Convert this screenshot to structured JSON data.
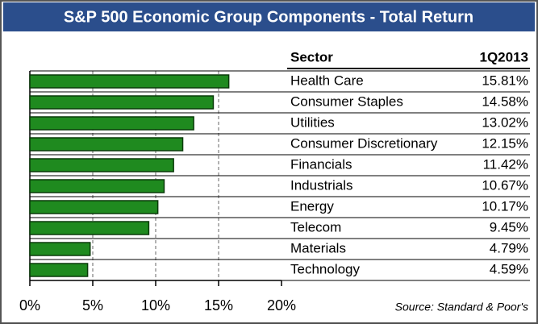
{
  "chart_data": {
    "type": "bar",
    "orientation": "horizontal",
    "title": "S&P 500 Economic Group Components - Total Return",
    "column_headers": [
      "Sector",
      "1Q2013"
    ],
    "categories": [
      "Health Care",
      "Consumer Staples",
      "Utilities",
      "Consumer Discretionary",
      "Financials",
      "Industrials",
      "Energy",
      "Telecom",
      "Materials",
      "Technology"
    ],
    "values": [
      15.81,
      14.58,
      13.02,
      12.15,
      11.42,
      10.67,
      10.17,
      9.45,
      4.79,
      4.59
    ],
    "value_labels": [
      "15.81%",
      "14.58%",
      "13.02%",
      "12.15%",
      "11.42%",
      "10.67%",
      "10.17%",
      "9.45%",
      "4.79%",
      "4.59%"
    ],
    "color": "#1f8a1f",
    "xlim": [
      0,
      20
    ],
    "xticks": [
      {
        "value": 0,
        "label": "0%"
      },
      {
        "value": 5,
        "label": "5%"
      },
      {
        "value": 10,
        "label": "10%"
      },
      {
        "value": 15,
        "label": "15%"
      },
      {
        "value": 20,
        "label": "20%"
      }
    ],
    "grid": true,
    "source": "Source: Standard & Poor's"
  }
}
